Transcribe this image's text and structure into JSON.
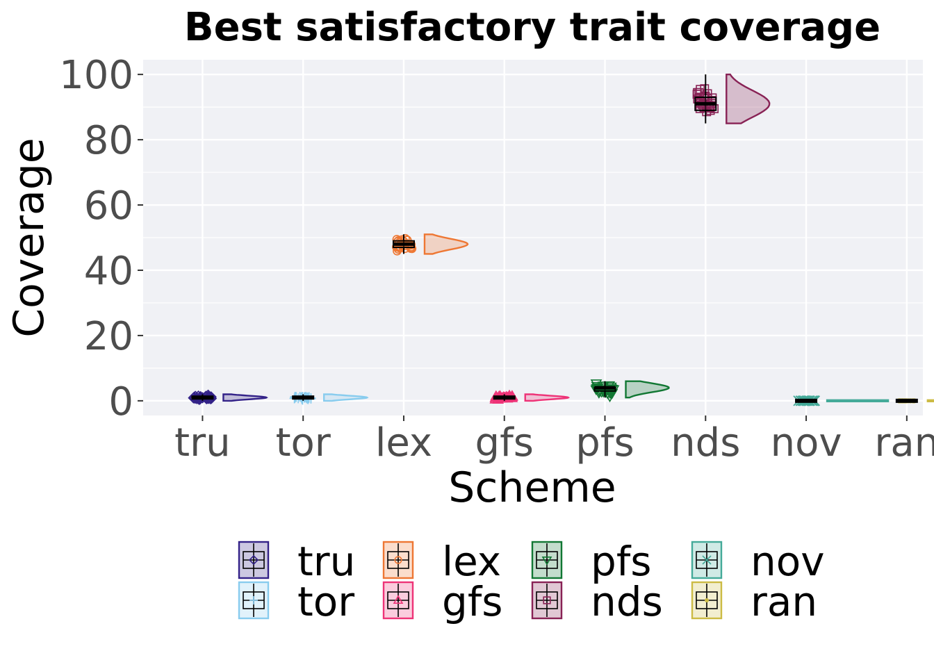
{
  "chart_data": {
    "type": "raincloud",
    "title": "Best satisfactory trait coverage",
    "xlabel": "Scheme",
    "ylabel": "Coverage",
    "ylim": [
      -4.5,
      104.5
    ],
    "yticks": [
      0,
      20,
      40,
      60,
      80,
      100
    ],
    "ytick_labels": [
      "0",
      "20",
      "40",
      "60",
      "80",
      "100"
    ],
    "grid": true,
    "legend_position": "bottom",
    "categories": [
      "tru",
      "tor",
      "lex",
      "gfs",
      "pfs",
      "nds",
      "nov",
      "ran"
    ],
    "series": [
      {
        "name": "tru",
        "color": "#332288",
        "marker": "diamond",
        "min": 0,
        "q1": 1,
        "median": 1,
        "q3": 1,
        "max": 2,
        "mean": 1
      },
      {
        "name": "tor",
        "color": "#88ccee",
        "marker": "plus",
        "min": 0,
        "q1": 1,
        "median": 1,
        "q3": 1,
        "max": 2,
        "mean": 1
      },
      {
        "name": "lex",
        "color": "#ee7733",
        "marker": "circle",
        "min": 45,
        "q1": 47,
        "median": 48,
        "q3": 49,
        "max": 51,
        "mean": 48
      },
      {
        "name": "gfs",
        "color": "#ee3377",
        "marker": "triangle",
        "min": 0,
        "q1": 1,
        "median": 1,
        "q3": 1,
        "max": 2,
        "mean": 1
      },
      {
        "name": "pfs",
        "color": "#117733",
        "marker": "triangle-down",
        "min": 1,
        "q1": 3,
        "median": 4,
        "q3": 4,
        "max": 6,
        "mean": 4
      },
      {
        "name": "nds",
        "color": "#882255",
        "marker": "square",
        "min": 85,
        "q1": 89,
        "median": 91,
        "q3": 93,
        "max": 100,
        "mean": 91
      },
      {
        "name": "nov",
        "color": "#44aa99",
        "marker": "x",
        "min": 0,
        "q1": 0,
        "median": 0,
        "q3": 0,
        "max": 0,
        "mean": 0
      },
      {
        "name": "ran",
        "color": "#ccbb44",
        "marker": "star",
        "min": 0,
        "q1": 0,
        "median": 0,
        "q3": 0,
        "max": 0,
        "mean": 0
      }
    ],
    "legend_order": [
      "tru",
      "tor",
      "lex",
      "gfs",
      "pfs",
      "nds",
      "nov",
      "ran"
    ]
  }
}
